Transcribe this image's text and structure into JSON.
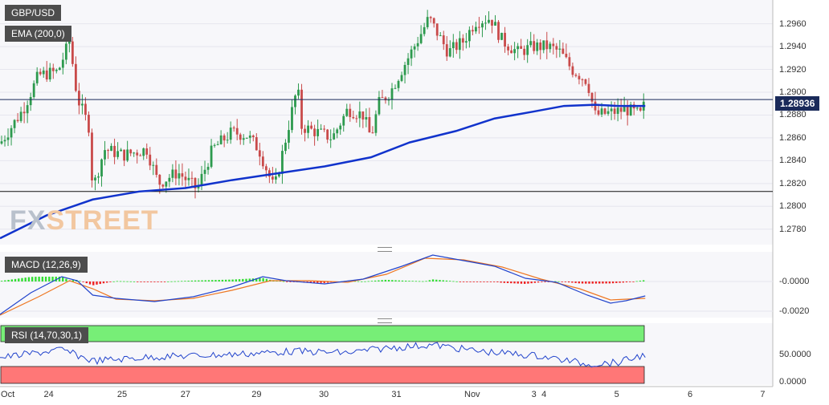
{
  "symbol": "GBP/USD",
  "watermark": {
    "part1": "FX",
    "part2": "STREET"
  },
  "price_pane": {
    "ema_label": "EMA (200,0)",
    "current_price": "1.28936",
    "ymin": 1.277,
    "ymax": 1.2978,
    "current_value": 1.28936,
    "support_level": 1.2813,
    "ticks": [
      "1.2960",
      "1.2940",
      "1.2920",
      "1.2900",
      "1.2880",
      "1.2860",
      "1.2840",
      "1.2820",
      "1.2800",
      "1.2780"
    ],
    "ema_color": "#1133cc"
  },
  "macd_pane": {
    "label": "MACD (12,26,9)",
    "ticks": [
      "-0.0000",
      "-0.0020"
    ],
    "hist_up_color": "#33dd33",
    "hist_down_color": "#ee2222",
    "macd_color": "#2244cc",
    "signal_color": "#ee7722"
  },
  "rsi_pane": {
    "label": "RSI (14,70,30,1)",
    "ticks": [
      "50.0000",
      "0.0000"
    ],
    "overbought_color": "#77ee77",
    "oversold_color": "#ff7777",
    "line_color": "#2244cc"
  },
  "x_axis": {
    "labels": [
      {
        "text": "Oct",
        "pos": 0.01
      },
      {
        "text": "24",
        "pos": 0.063
      },
      {
        "text": "25",
        "pos": 0.158
      },
      {
        "text": "27",
        "pos": 0.24
      },
      {
        "text": "29",
        "pos": 0.332
      },
      {
        "text": "30",
        "pos": 0.419
      },
      {
        "text": "31",
        "pos": 0.513
      },
      {
        "text": "Nov",
        "pos": 0.611
      },
      {
        "text": "3",
        "pos": 0.691
      },
      {
        "text": "4",
        "pos": 0.704
      },
      {
        "text": "5",
        "pos": 0.798
      },
      {
        "text": "6",
        "pos": 0.893
      },
      {
        "text": "7",
        "pos": 0.987
      }
    ]
  },
  "chart_data": {
    "type": "line",
    "title": "GBP/USD",
    "series": [
      {
        "name": "EMA (200,0)",
        "points": [
          [
            0,
            1.2772
          ],
          [
            0.06,
            1.2792
          ],
          [
            0.12,
            1.2806
          ],
          [
            0.18,
            1.2813
          ],
          [
            0.24,
            1.2816
          ],
          [
            0.3,
            1.2823
          ],
          [
            0.36,
            1.2829
          ],
          [
            0.42,
            1.2835
          ],
          [
            0.48,
            1.2843
          ],
          [
            0.53,
            1.2856
          ],
          [
            0.59,
            1.2866
          ],
          [
            0.64,
            1.2877
          ],
          [
            0.69,
            1.2883
          ],
          [
            0.73,
            1.2888
          ],
          [
            0.77,
            1.2889
          ],
          [
            0.8,
            1.2888
          ],
          [
            0.835,
            1.2888
          ]
        ]
      }
    ],
    "price_path": [
      [
        0,
        1.2855
      ],
      [
        0.03,
        1.2885
      ],
      [
        0.05,
        1.2915
      ],
      [
        0.075,
        1.2918
      ],
      [
        0.09,
        1.2945
      ],
      [
        0.1,
        1.2895
      ],
      [
        0.115,
        1.287
      ],
      [
        0.12,
        1.2815
      ],
      [
        0.135,
        1.285
      ],
      [
        0.16,
        1.2845
      ],
      [
        0.19,
        1.285
      ],
      [
        0.205,
        1.282
      ],
      [
        0.23,
        1.283
      ],
      [
        0.255,
        1.2815
      ],
      [
        0.275,
        1.285
      ],
      [
        0.3,
        1.2865
      ],
      [
        0.32,
        1.2862
      ],
      [
        0.335,
        1.285
      ],
      [
        0.355,
        1.2815
      ],
      [
        0.37,
        1.286
      ],
      [
        0.385,
        1.2905
      ],
      [
        0.39,
        1.287
      ],
      [
        0.41,
        1.2865
      ],
      [
        0.43,
        1.286
      ],
      [
        0.45,
        1.2885
      ],
      [
        0.47,
        1.288
      ],
      [
        0.48,
        1.286
      ],
      [
        0.49,
        1.289
      ],
      [
        0.505,
        1.29
      ],
      [
        0.52,
        1.292
      ],
      [
        0.54,
        1.2945
      ],
      [
        0.555,
        1.2965
      ],
      [
        0.58,
        1.2935
      ],
      [
        0.6,
        1.2945
      ],
      [
        0.615,
        1.2962
      ],
      [
        0.635,
        1.2965
      ],
      [
        0.65,
        1.2945
      ],
      [
        0.67,
        1.2935
      ],
      [
        0.69,
        1.294
      ],
      [
        0.71,
        1.294
      ],
      [
        0.725,
        1.2935
      ],
      [
        0.74,
        1.292
      ],
      [
        0.76,
        1.291
      ],
      [
        0.77,
        1.288
      ],
      [
        0.79,
        1.2882
      ],
      [
        0.81,
        1.2885
      ],
      [
        0.83,
        1.288
      ],
      [
        0.835,
        1.2893
      ]
    ],
    "ylim": [
      1.277,
      1.2978
    ]
  }
}
